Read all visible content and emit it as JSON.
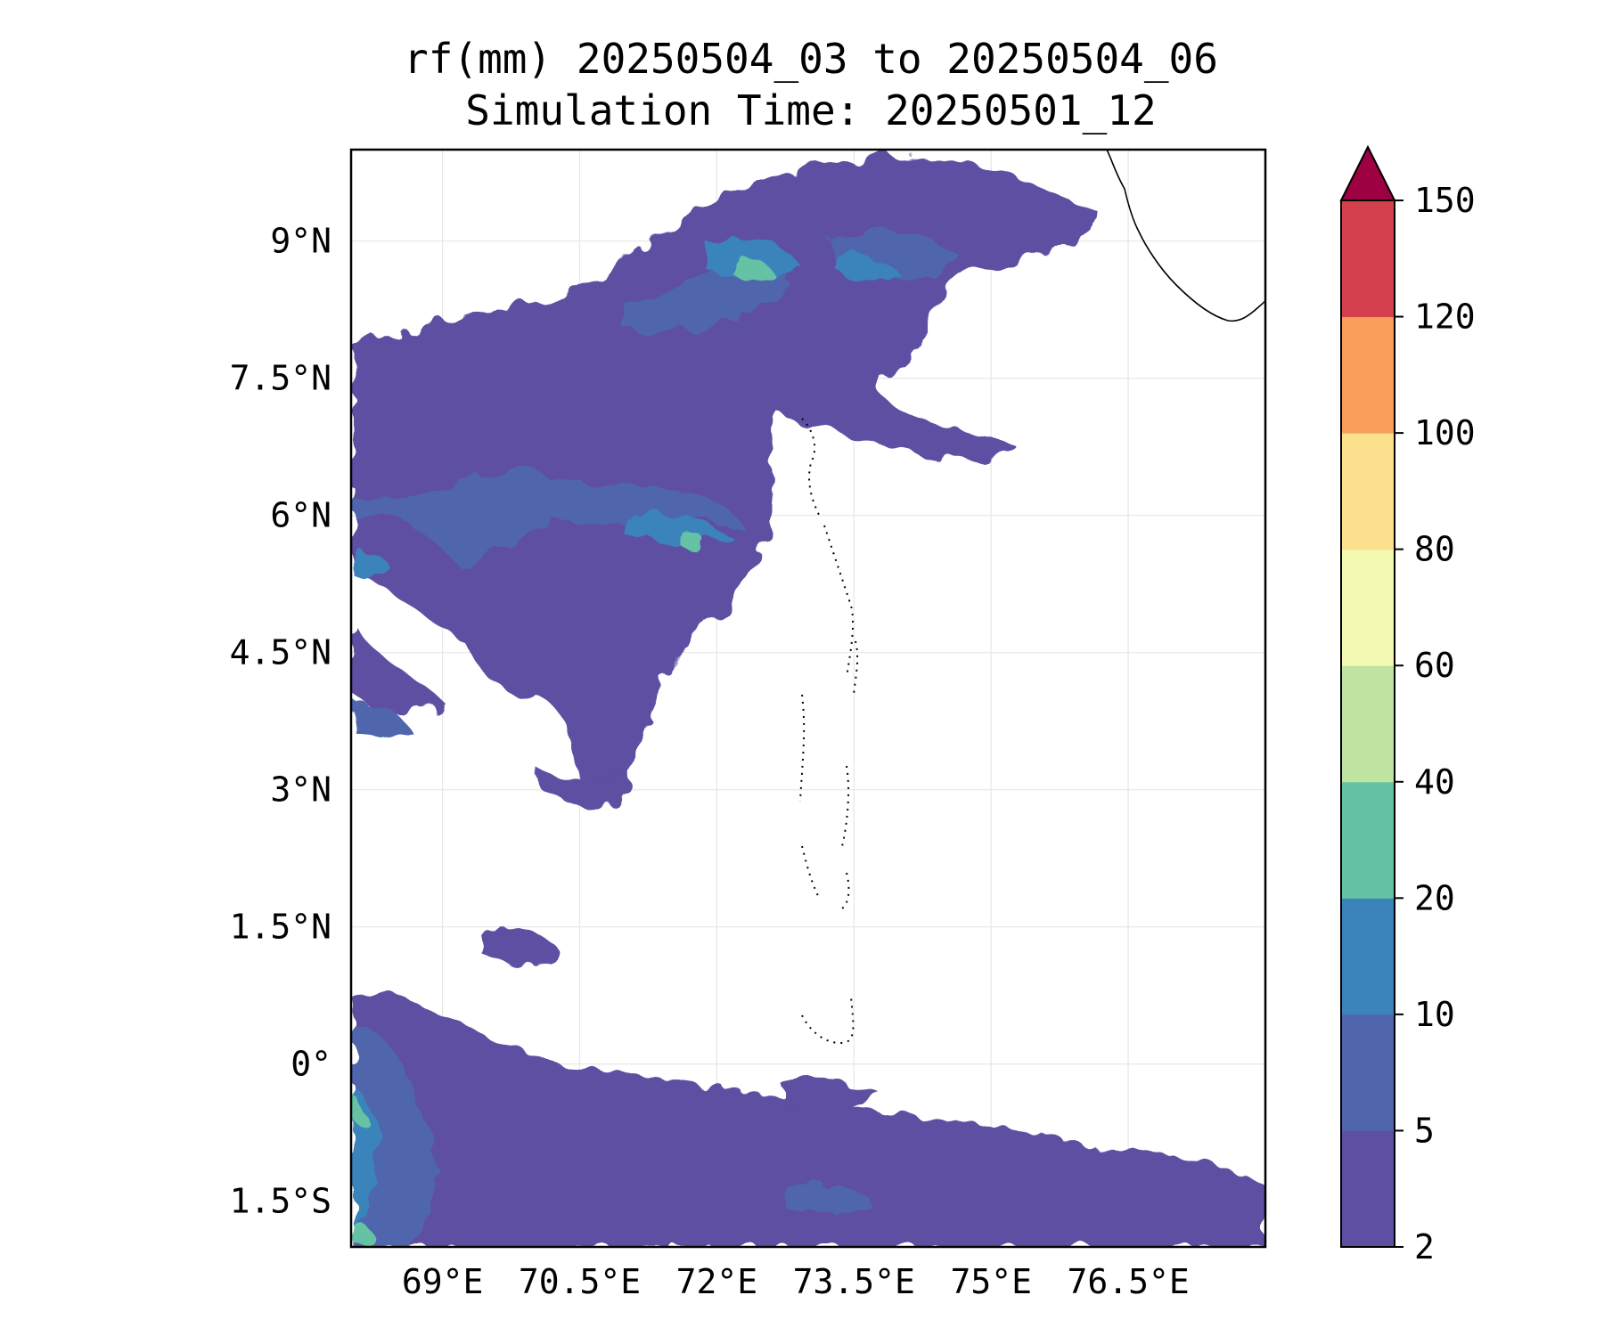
{
  "title": {
    "line1": "rf(mm) 20250504_03 to 20250504_06",
    "line2": "Simulation Time: 20250501_12"
  },
  "map": {
    "lon_range": [
      68.0,
      78.0
    ],
    "lat_range": [
      -2.0,
      10.0
    ],
    "gridlines": true,
    "x_ticks": [
      {
        "value": 69.0,
        "label": "69°E"
      },
      {
        "value": 70.5,
        "label": "70.5°E"
      },
      {
        "value": 72.0,
        "label": "72°E"
      },
      {
        "value": 73.5,
        "label": "73.5°E"
      },
      {
        "value": 75.0,
        "label": "75°E"
      },
      {
        "value": 76.5,
        "label": "76.5°E"
      }
    ],
    "y_ticks": [
      {
        "value": 9.0,
        "label": "9°N"
      },
      {
        "value": 7.5,
        "label": "7.5°N"
      },
      {
        "value": 6.0,
        "label": "6°N"
      },
      {
        "value": 4.5,
        "label": "4.5°N"
      },
      {
        "value": 3.0,
        "label": "3°N"
      },
      {
        "value": 1.5,
        "label": "1.5°N"
      },
      {
        "value": 0.0,
        "label": "0°"
      },
      {
        "value": -1.5,
        "label": "1.5°S"
      }
    ]
  },
  "colorbar": {
    "extend": "max",
    "levels": [
      {
        "label": "2",
        "color": "#5e4fa2"
      },
      {
        "label": "5",
        "color": "#4f66ad"
      },
      {
        "label": "10",
        "color": "#3b84bb"
      },
      {
        "label": "20",
        "color": "#66c2a5"
      },
      {
        "label": "40",
        "color": "#bfe4a1"
      },
      {
        "label": "60",
        "color": "#f3f9b0"
      },
      {
        "label": "80",
        "color": "#fbe08e"
      },
      {
        "label": "100",
        "color": "#f99e5a"
      },
      {
        "label": "120",
        "color": "#d5404f"
      },
      {
        "label": "150",
        "color": "#9e0142"
      }
    ]
  },
  "rain_regions": [
    {
      "lon": 70.0,
      "lat": 5.6,
      "level": 2
    },
    {
      "lon": 71.2,
      "lat": 5.9,
      "level": 2
    },
    {
      "lon": 72.3,
      "lat": 8.6,
      "level": 3
    },
    {
      "lon": 71.5,
      "lat": 8.2,
      "level": 2
    },
    {
      "lon": 73.8,
      "lat": 8.9,
      "level": 2
    },
    {
      "lon": 68.4,
      "lat": 5.4,
      "level": 2
    },
    {
      "lon": 68.4,
      "lat": -1.3,
      "level": 3
    },
    {
      "lon": 68.0,
      "lat": -0.3,
      "level": 3
    }
  ]
}
